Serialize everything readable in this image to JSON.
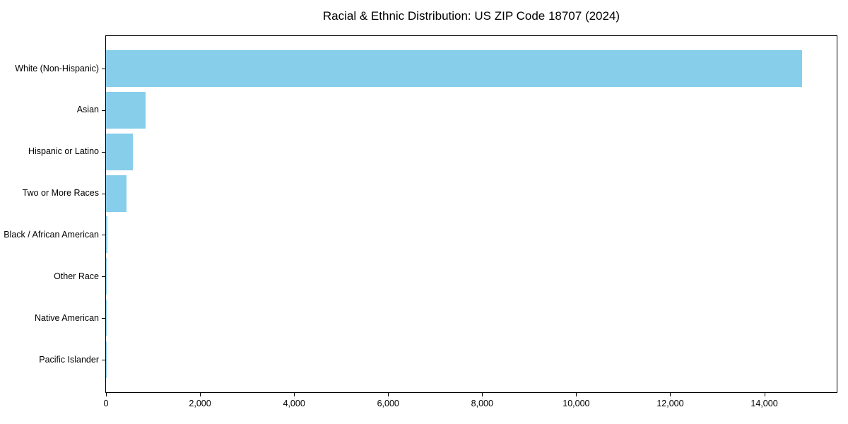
{
  "figure": {
    "background": "#ffffff",
    "text_color": "#000000",
    "spine_color": "#000000"
  },
  "chart_data": {
    "type": "bar",
    "orientation": "horizontal",
    "title": "Racial & Ethnic Distribution: US ZIP Code 18707 (2024)",
    "categories": [
      "White (Non-Hispanic)",
      "Asian",
      "Hispanic or Latino",
      "Two or More Races",
      "Black / African American",
      "Other Race",
      "Native American",
      "Pacific Islander"
    ],
    "values": [
      14800,
      845,
      565,
      430,
      35,
      20,
      6,
      2
    ],
    "xlabel": "",
    "ylabel": "",
    "xlim": [
      0,
      15540
    ],
    "x_ticks": [
      0,
      2000,
      4000,
      6000,
      8000,
      10000,
      12000,
      14000
    ],
    "x_tick_labels": [
      "0",
      "2,000",
      "4,000",
      "6,000",
      "8,000",
      "10,000",
      "12,000",
      "14,000"
    ],
    "bar_color": "#87CEEB",
    "grid": false,
    "legend": null
  }
}
